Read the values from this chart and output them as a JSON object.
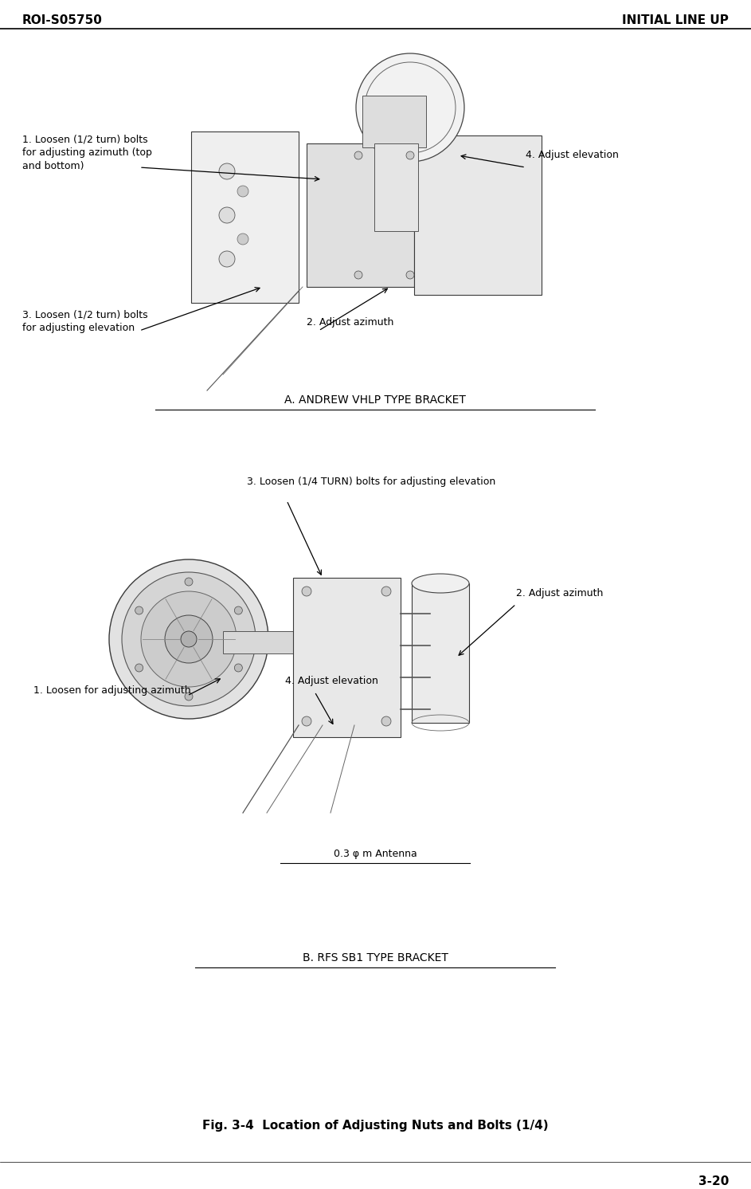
{
  "bg_color": "#ffffff",
  "header_left": "ROI-S05750",
  "header_right": "INITIAL LINE UP",
  "footer_right": "3-20",
  "fig_caption": "Fig. 3-4  Location of Adjusting Nuts and Bolts (1/4)",
  "section_a_title": "A. ANDREW VHLP TYPE BRACKET",
  "section_b_title": "B. RFS SB1 TYPE BRACKET",
  "antenna_label": "0.3 φ m Antenna",
  "label_fontsize": 9,
  "header_fontsize": 11,
  "section_title_fontsize": 10,
  "caption_fontsize": 11
}
